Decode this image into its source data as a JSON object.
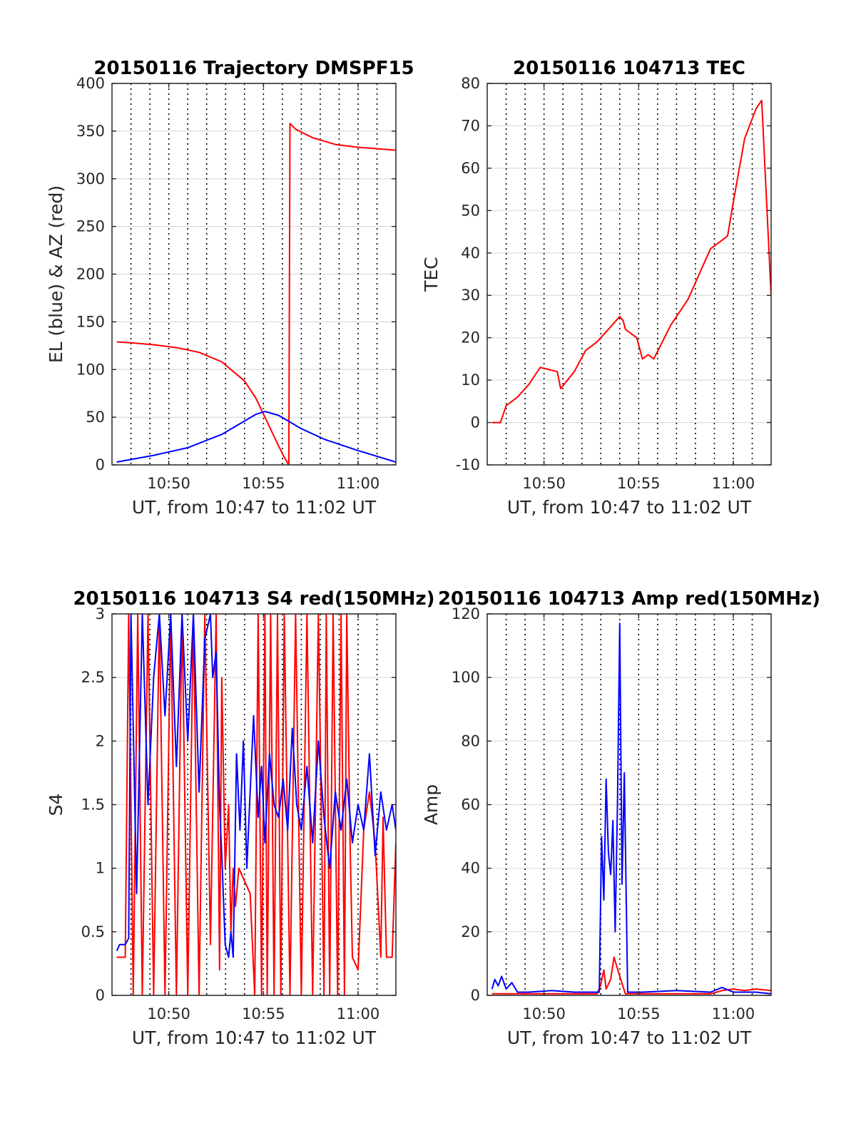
{
  "chart_data": [
    {
      "type": "line",
      "title": "20150116 Trajectory DMSPF15",
      "xlabel": "UT, from 10:47 to 11:02 UT",
      "ylabel": "EL (blue) & AZ (red)",
      "xlim": [
        10.7833,
        11.0333
      ],
      "ylim": [
        0,
        400
      ],
      "xticks": [
        {
          "v": 10.8333,
          "label": "10:50"
        },
        {
          "v": 10.9167,
          "label": "10:55"
        },
        {
          "v": 11.0,
          "label": "11:00"
        }
      ],
      "yticks": [
        {
          "v": 0,
          "label": "0"
        },
        {
          "v": 50,
          "label": "50"
        },
        {
          "v": 100,
          "label": "100"
        },
        {
          "v": 150,
          "label": "150"
        },
        {
          "v": 200,
          "label": "200"
        },
        {
          "v": 250,
          "label": "250"
        },
        {
          "v": 300,
          "label": "300"
        },
        {
          "v": 350,
          "label": "350"
        },
        {
          "v": 400,
          "label": "400"
        }
      ],
      "grid": true,
      "minute_lines": true,
      "series": [
        {
          "color": "#ff0000",
          "x": [
            10.7875,
            10.8,
            10.82,
            10.84,
            10.86,
            10.88,
            10.9,
            10.91,
            10.92,
            10.93,
            10.935,
            10.939,
            10.94,
            10.945,
            10.96,
            10.98,
            11.0,
            11.0333
          ],
          "y": [
            129,
            128,
            126,
            123,
            118,
            108,
            88,
            70,
            45,
            20,
            8,
            0,
            358,
            352,
            343,
            336,
            333,
            330
          ]
        },
        {
          "color": "#0000ff",
          "x": [
            10.7875,
            10.82,
            10.85,
            10.88,
            10.9,
            10.91,
            10.918,
            10.93,
            10.95,
            10.97,
            11.0,
            11.0333
          ],
          "y": [
            3,
            10,
            18,
            32,
            46,
            53,
            56,
            52,
            38,
            27,
            15,
            3
          ]
        }
      ]
    },
    {
      "type": "line",
      "title": "20150116 104713 TEC",
      "xlabel": "UT, from 10:47 to 11:02 UT",
      "ylabel": "TEC",
      "xlim": [
        10.7833,
        11.0333
      ],
      "ylim": [
        -10,
        80
      ],
      "xticks": [
        {
          "v": 10.8333,
          "label": "10:50"
        },
        {
          "v": 10.9167,
          "label": "10:55"
        },
        {
          "v": 11.0,
          "label": "11:00"
        }
      ],
      "yticks": [
        {
          "v": -10,
          "label": "-10"
        },
        {
          "v": 0,
          "label": "0"
        },
        {
          "v": 10,
          "label": "10"
        },
        {
          "v": 20,
          "label": "20"
        },
        {
          "v": 30,
          "label": "30"
        },
        {
          "v": 40,
          "label": "40"
        },
        {
          "v": 50,
          "label": "50"
        },
        {
          "v": 60,
          "label": "60"
        },
        {
          "v": 70,
          "label": "70"
        },
        {
          "v": 80,
          "label": "80"
        }
      ],
      "grid": true,
      "minute_lines": true,
      "series": [
        {
          "color": "#ff0000",
          "x": [
            10.7875,
            10.795,
            10.8,
            10.81,
            10.82,
            10.83,
            10.845,
            10.848,
            10.86,
            10.87,
            10.88,
            10.89,
            10.9,
            10.903,
            10.905,
            10.915,
            10.92,
            10.925,
            10.93,
            10.945,
            10.96,
            10.97,
            10.98,
            10.99,
            10.995,
            11.0,
            11.01,
            11.02,
            11.025,
            11.0333
          ],
          "y": [
            0,
            0,
            4,
            6,
            9,
            13,
            12,
            8,
            12,
            17,
            19,
            22,
            25,
            24,
            22,
            20,
            15,
            16,
            15,
            23,
            29,
            35,
            41,
            43,
            44,
            52,
            67,
            74,
            76,
            30
          ]
        }
      ]
    },
    {
      "type": "line",
      "title": "20150116 104713 S4 red(150MHz)",
      "xlabel": "UT, from 10:47 to 11:02 UT",
      "ylabel": "S4",
      "xlim": [
        10.7833,
        11.0333
      ],
      "ylim": [
        0,
        3
      ],
      "xticks": [
        {
          "v": 10.8333,
          "label": "10:50"
        },
        {
          "v": 10.9167,
          "label": "10:55"
        },
        {
          "v": 11.0,
          "label": "11:00"
        }
      ],
      "yticks": [
        {
          "v": 0,
          "label": "0"
        },
        {
          "v": 0.5,
          "label": "0.5"
        },
        {
          "v": 1,
          "label": "1"
        },
        {
          "v": 1.5,
          "label": "1.5"
        },
        {
          "v": 2,
          "label": "2"
        },
        {
          "v": 2.5,
          "label": "2.5"
        },
        {
          "v": 3,
          "label": "3"
        }
      ],
      "grid": true,
      "minute_lines": true,
      "series": [
        {
          "color": "#ff0000",
          "x": [
            10.7875,
            10.795,
            10.798,
            10.802,
            10.806,
            10.81,
            10.815,
            10.82,
            10.825,
            10.83,
            10.835,
            10.84,
            10.845,
            10.85,
            10.855,
            10.86,
            10.865,
            10.87,
            10.875,
            10.878,
            10.88,
            10.883,
            10.886,
            10.888,
            10.89,
            10.892,
            10.895,
            10.905,
            10.909,
            10.912,
            10.915,
            10.918,
            10.92,
            10.923,
            10.926,
            10.929,
            10.932,
            10.935,
            10.94,
            10.945,
            10.95,
            10.955,
            10.96,
            10.965,
            10.97,
            10.972,
            10.975,
            10.978,
            10.982,
            10.985,
            10.988,
            10.99,
            10.993,
            10.995,
            11.0,
            11.005,
            11.01,
            11.015,
            11.02,
            11.022,
            11.025,
            11.03,
            11.0333
          ],
          "y": [
            0.3,
            0.3,
            3,
            0,
            3,
            0,
            3,
            0,
            3,
            0,
            3,
            0,
            3,
            0,
            3,
            0,
            3,
            0.4,
            3,
            0.2,
            2.5,
            1.0,
            1.5,
            0.5,
            1.0,
            0.7,
            1.0,
            0.8,
            0,
            3,
            0,
            3,
            0,
            3,
            0,
            3,
            0,
            3,
            0,
            3,
            0,
            3,
            0,
            3,
            0,
            3,
            0,
            3,
            0,
            3,
            0,
            3,
            1.2,
            0.3,
            0.2,
            1.3,
            1.6,
            1.2,
            0.3,
            1.4,
            0.3,
            0.3,
            1.2
          ]
        },
        {
          "color": "#0000ff",
          "x": [
            10.7875,
            10.79,
            10.795,
            10.798,
            10.8,
            10.805,
            10.81,
            10.815,
            10.82,
            10.825,
            10.83,
            10.835,
            10.84,
            10.845,
            10.85,
            10.855,
            10.86,
            10.865,
            10.87,
            10.872,
            10.875,
            10.878,
            10.88,
            10.883,
            10.886,
            10.888,
            10.89,
            10.893,
            10.896,
            10.899,
            10.902,
            10.905,
            10.908,
            10.912,
            10.915,
            10.918,
            10.922,
            10.926,
            10.93,
            10.934,
            10.938,
            10.942,
            10.946,
            10.95,
            10.955,
            10.96,
            10.965,
            10.97,
            10.975,
            10.98,
            10.985,
            10.99,
            10.995,
            11.0,
            11.005,
            11.01,
            11.015,
            11.02,
            11.025,
            11.03,
            11.0333
          ],
          "y": [
            0.35,
            0.4,
            0.4,
            0.45,
            3,
            0.8,
            3,
            1.5,
            2.5,
            3,
            2.2,
            3,
            1.8,
            3,
            2.0,
            3,
            1.6,
            2.8,
            3,
            2.5,
            2.7,
            1.5,
            1.1,
            0.4,
            0.3,
            0.5,
            0.3,
            1.9,
            1.3,
            2.0,
            1.0,
            1.6,
            2.2,
            1.4,
            1.8,
            1.2,
            1.9,
            1.5,
            1.4,
            1.7,
            1.3,
            2.1,
            1.5,
            1.3,
            1.8,
            1.2,
            2.0,
            1.4,
            1.0,
            1.6,
            1.3,
            1.7,
            1.2,
            1.5,
            1.3,
            1.9,
            1.1,
            1.6,
            1.3,
            1.5,
            1.3
          ]
        }
      ]
    },
    {
      "type": "line",
      "title": "20150116 104713 Amp red(150MHz)",
      "xlabel": "UT, from 10:47 to 11:02 UT",
      "ylabel": "Amp",
      "xlim": [
        10.7833,
        11.0333
      ],
      "ylim": [
        0,
        120
      ],
      "xticks": [
        {
          "v": 10.8333,
          "label": "10:50"
        },
        {
          "v": 10.9167,
          "label": "10:55"
        },
        {
          "v": 11.0,
          "label": "11:00"
        }
      ],
      "yticks": [
        {
          "v": 0,
          "label": "0"
        },
        {
          "v": 20,
          "label": "20"
        },
        {
          "v": 40,
          "label": "40"
        },
        {
          "v": 60,
          "label": "60"
        },
        {
          "v": 80,
          "label": "80"
        },
        {
          "v": 100,
          "label": "100"
        },
        {
          "v": 120,
          "label": "120"
        }
      ],
      "grid": true,
      "minute_lines": true,
      "series": [
        {
          "color": "#ff0000",
          "x": [
            10.7875,
            10.88,
            10.883,
            10.886,
            10.888,
            10.892,
            10.895,
            10.9,
            10.905,
            10.98,
            10.99,
            11.0,
            11.01,
            11.02,
            11.0333
          ],
          "y": [
            0.5,
            0.5,
            3,
            8,
            2,
            5,
            12,
            6,
            0.5,
            0.5,
            1.5,
            2,
            1.5,
            2,
            1.5
          ]
        },
        {
          "color": "#0000ff",
          "x": [
            10.7875,
            10.79,
            10.793,
            10.796,
            10.8,
            10.805,
            10.81,
            10.82,
            10.84,
            10.86,
            10.87,
            10.882,
            10.884,
            10.886,
            10.888,
            10.89,
            10.892,
            10.894,
            10.896,
            10.898,
            10.9,
            10.902,
            10.904,
            10.907,
            10.92,
            10.95,
            10.98,
            10.99,
            11.0,
            11.02,
            11.0333
          ],
          "y": [
            2,
            5,
            3,
            6,
            2,
            4,
            1,
            1,
            1.5,
            1,
            1,
            1,
            50,
            30,
            68,
            45,
            38,
            55,
            20,
            60,
            117,
            35,
            70,
            1,
            1,
            1.5,
            1,
            2.5,
            1,
            1,
            0.5
          ]
        }
      ]
    }
  ]
}
